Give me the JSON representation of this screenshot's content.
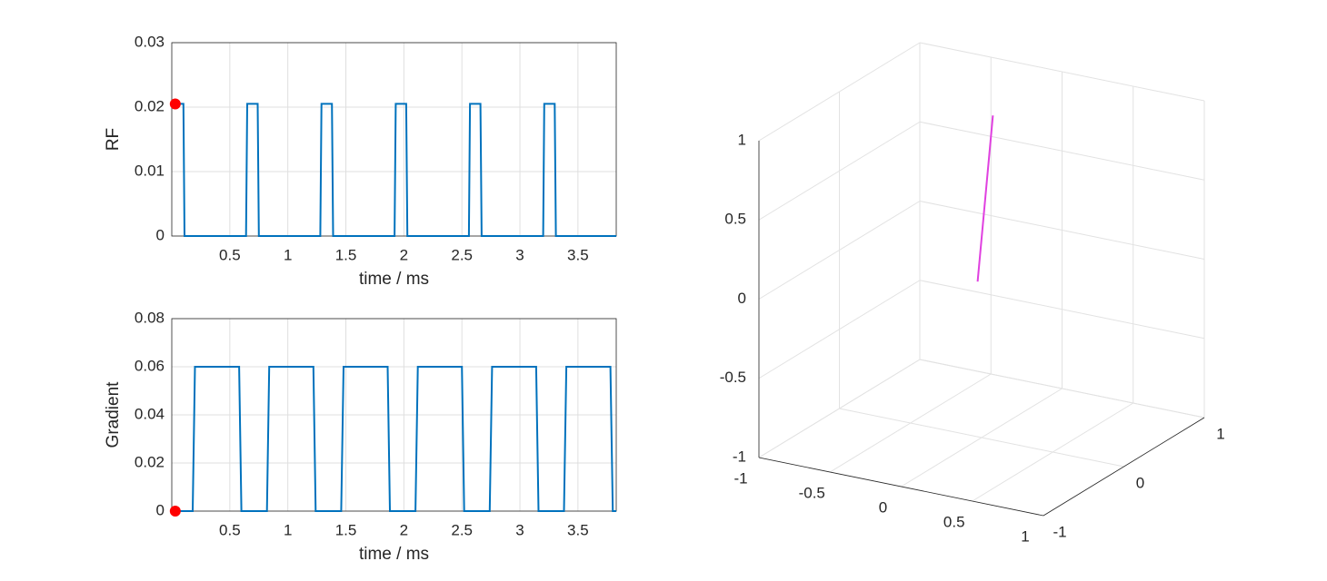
{
  "chart_data": [
    {
      "type": "line",
      "ylabel": "RF",
      "xlabel": "time / ms",
      "x": [
        0,
        0.1,
        0.11,
        0.64,
        0.65,
        0.74,
        0.75,
        1.28,
        1.29,
        1.38,
        1.39,
        1.92,
        1.93,
        2.02,
        2.03,
        2.56,
        2.57,
        2.66,
        2.67,
        3.2,
        3.21,
        3.3,
        3.31,
        3.83
      ],
      "series": [
        {
          "color": "#0072bd",
          "values": [
            0.0205,
            0.0205,
            0,
            0,
            0.0205,
            0.0205,
            0,
            0,
            0.0205,
            0.0205,
            0,
            0,
            0.0205,
            0.0205,
            0,
            0,
            0.0205,
            0.0205,
            0,
            0,
            0.0205,
            0.0205,
            0,
            0
          ]
        }
      ],
      "marker": {
        "x": 0.03,
        "y": 0.0205,
        "color": "#ff0000"
      },
      "xlim": [
        0,
        3.83
      ],
      "ylim": [
        0,
        0.03
      ],
      "xticks": [
        0.5,
        1,
        1.5,
        2,
        2.5,
        3,
        3.5
      ],
      "yticks": [
        0,
        0.01,
        0.02,
        0.03
      ],
      "grid": true
    },
    {
      "type": "line",
      "ylabel": "Gradient",
      "xlabel": "time / ms",
      "x": [
        0,
        0.18,
        0.2,
        0.58,
        0.6,
        0.82,
        0.84,
        1.22,
        1.24,
        1.46,
        1.48,
        1.86,
        1.88,
        2.1,
        2.12,
        2.5,
        2.52,
        2.74,
        2.76,
        3.14,
        3.16,
        3.38,
        3.4,
        3.78,
        3.8,
        3.83
      ],
      "series": [
        {
          "color": "#0072bd",
          "values": [
            0,
            0,
            0.06,
            0.06,
            0,
            0,
            0.06,
            0.06,
            0,
            0,
            0.06,
            0.06,
            0,
            0,
            0.06,
            0.06,
            0,
            0,
            0.06,
            0.06,
            0,
            0,
            0.06,
            0.06,
            0,
            0
          ]
        }
      ],
      "marker": {
        "x": 0.03,
        "y": 0,
        "color": "#ff0000"
      },
      "xlim": [
        0,
        3.83
      ],
      "ylim": [
        0,
        0.08
      ],
      "xticks": [
        0.5,
        1,
        1.5,
        2,
        2.5,
        3,
        3.5
      ],
      "yticks": [
        0,
        0.02,
        0.04,
        0.06,
        0.08
      ],
      "grid": true
    },
    {
      "type": "line3d",
      "x": [
        0,
        0
      ],
      "y": [
        -0.05,
        0.14
      ],
      "z": [
        0,
        0.99
      ],
      "color": "#e040e0",
      "xlim": [
        -1,
        1
      ],
      "ylim": [
        -1,
        1
      ],
      "zlim": [
        -1,
        1
      ],
      "xticks": [
        -1,
        -0.5,
        0,
        0.5,
        1
      ],
      "yticks": [
        -1,
        0,
        1
      ],
      "zticks": [
        -1,
        -0.5,
        0,
        0.5,
        1
      ],
      "grid": true
    }
  ]
}
